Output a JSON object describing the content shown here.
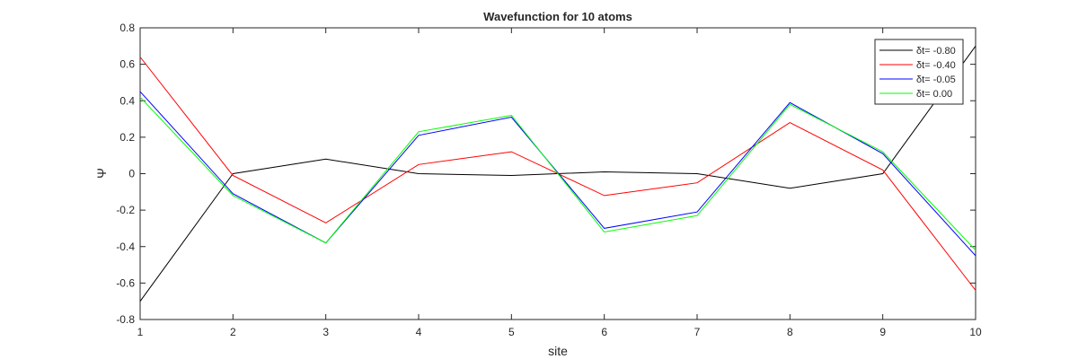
{
  "chart_data": {
    "type": "line",
    "title": "Wavefunction for 10 atoms",
    "xlabel": "site",
    "ylabel": "Ψ",
    "xlim": [
      1,
      10
    ],
    "ylim": [
      -0.8,
      0.8
    ],
    "xticks": [
      1,
      2,
      3,
      4,
      5,
      6,
      7,
      8,
      9,
      10
    ],
    "yticks": [
      -0.8,
      -0.6,
      -0.4,
      -0.2,
      0,
      0.2,
      0.4,
      0.6,
      0.8
    ],
    "ytick_labels": [
      "-0.8",
      "-0.6",
      "-0.4",
      "-0.2",
      "0",
      "0.2",
      "0.4",
      "0.6",
      "0.8"
    ],
    "grid": false,
    "legend_position": "top-right",
    "x": [
      1,
      2,
      3,
      4,
      5,
      6,
      7,
      8,
      9,
      10
    ],
    "series": [
      {
        "name": "δt= -0.80",
        "color": "#000000",
        "values": [
          -0.7,
          0.0,
          0.08,
          0.0,
          -0.01,
          0.01,
          0.0,
          -0.08,
          0.0,
          0.7
        ]
      },
      {
        "name": "δt= -0.40",
        "color": "#ff0000",
        "values": [
          0.64,
          -0.01,
          -0.27,
          0.05,
          0.12,
          -0.12,
          -0.05,
          0.28,
          0.02,
          -0.64
        ]
      },
      {
        "name": "δt= -0.05",
        "color": "#0000ff",
        "values": [
          0.45,
          -0.11,
          -0.38,
          0.21,
          0.31,
          -0.3,
          -0.21,
          0.39,
          0.11,
          -0.45
        ]
      },
      {
        "name": "δt= 0.00",
        "color": "#00ff00",
        "values": [
          0.42,
          -0.12,
          -0.38,
          0.23,
          0.32,
          -0.32,
          -0.23,
          0.38,
          0.12,
          -0.42
        ]
      }
    ]
  }
}
